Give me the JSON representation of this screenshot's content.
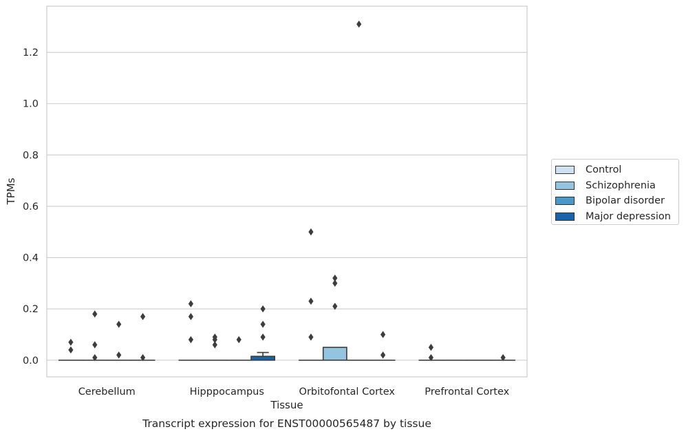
{
  "chart_data": {
    "type": "boxplot",
    "title": "Transcript expression for ENST00000565487 by tissue",
    "xlabel": "Tissue",
    "ylabel": "TPMs",
    "ylim": [
      -0.065,
      1.38
    ],
    "yticks": [
      0.0,
      0.2,
      0.4,
      0.6,
      0.8,
      1.0,
      1.2
    ],
    "ytick_labels": [
      "0.0",
      "0.2",
      "0.4",
      "0.6",
      "0.8",
      "1.0",
      "1.2"
    ],
    "grid": "horizontal",
    "legend_position": "right",
    "categories": [
      "Cerebellum",
      "Hipppocampus",
      "Orbitofontal Cortex",
      "Prefrontal Cortex"
    ],
    "series": [
      {
        "name": "Control",
        "color": "#d0e1f2",
        "boxes": [
          {
            "q1": 0,
            "median": 0,
            "q3": 0,
            "whisker_high": 0,
            "outliers": [
              0.04,
              0.07
            ]
          },
          {
            "q1": 0,
            "median": 0,
            "q3": 0,
            "whisker_high": 0,
            "outliers": [
              0.08,
              0.17,
              0.22
            ]
          },
          {
            "q1": 0,
            "median": 0,
            "q3": 0,
            "whisker_high": 0,
            "outliers": [
              0.09,
              0.23,
              0.5
            ]
          },
          {
            "q1": 0,
            "median": 0,
            "q3": 0,
            "whisker_high": 0,
            "outliers": [
              0.01,
              0.05
            ]
          }
        ]
      },
      {
        "name": "Schizophrenia",
        "color": "#94c4df",
        "boxes": [
          {
            "q1": 0,
            "median": 0,
            "q3": 0,
            "whisker_high": 0,
            "outliers": [
              0.01,
              0.06,
              0.18
            ]
          },
          {
            "q1": 0,
            "median": 0,
            "q3": 0,
            "whisker_high": 0,
            "outliers": [
              0.06,
              0.08,
              0.09
            ]
          },
          {
            "q1": 0,
            "median": 0,
            "q3": 0.05,
            "whisker_high": 0.05,
            "outliers": [
              0.21,
              0.3,
              0.32
            ]
          },
          {
            "q1": 0,
            "median": 0,
            "q3": 0,
            "whisker_high": 0,
            "outliers": []
          }
        ]
      },
      {
        "name": "Bipolar disorder",
        "color": "#4a98c9",
        "boxes": [
          {
            "q1": 0,
            "median": 0,
            "q3": 0,
            "whisker_high": 0,
            "outliers": [
              0.02,
              0.14
            ]
          },
          {
            "q1": 0,
            "median": 0,
            "q3": 0,
            "whisker_high": 0,
            "outliers": [
              0.08
            ]
          },
          {
            "q1": 0,
            "median": 0,
            "q3": 0,
            "whisker_high": 0,
            "outliers": [
              1.31
            ]
          },
          {
            "q1": 0,
            "median": 0,
            "q3": 0,
            "whisker_high": 0,
            "outliers": []
          }
        ]
      },
      {
        "name": "Major depression",
        "color": "#1764ab",
        "boxes": [
          {
            "q1": 0,
            "median": 0,
            "q3": 0,
            "whisker_high": 0,
            "outliers": [
              0.01,
              0.17
            ]
          },
          {
            "q1": 0,
            "median": 0,
            "q3": 0.015,
            "whisker_high": 0.03,
            "outliers": [
              0.09,
              0.14,
              0.2
            ]
          },
          {
            "q1": 0,
            "median": 0,
            "q3": 0,
            "whisker_high": 0,
            "outliers": [
              0.02,
              0.1
            ]
          },
          {
            "q1": 0,
            "median": 0,
            "q3": 0,
            "whisker_high": 0,
            "outliers": [
              0.01
            ]
          }
        ]
      }
    ]
  }
}
